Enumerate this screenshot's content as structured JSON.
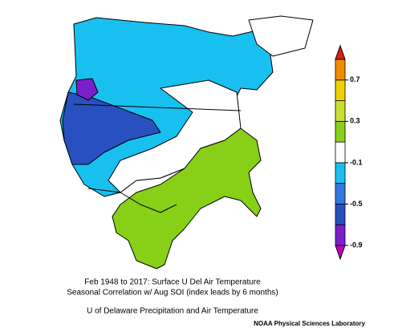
{
  "caption": {
    "line1": "Feb 1948 to 2017: Surface U Del Air Temperature",
    "line2": "Seasonal Correlation w/ Aug SOI (index leads by 6 months)",
    "line3": "U of Delaware Precipitation and Air Temperature"
  },
  "credit": "NOAA Physical Sciences Laboratory",
  "colorbar": {
    "levels": [
      -0.9,
      -0.7,
      -0.5,
      -0.3,
      -0.1,
      0.1,
      0.3,
      0.5,
      0.7,
      0.9
    ],
    "colors": [
      "#c000c0",
      "#7a20c8",
      "#2850c0",
      "#3278e0",
      "#18c0f0",
      "#ffffff",
      "#88d018",
      "#c8e030",
      "#f0d000",
      "#f08c00",
      "#e02010"
    ],
    "ticks": [
      0.7,
      0.3,
      -0.1,
      -0.5,
      -0.9
    ]
  }
}
